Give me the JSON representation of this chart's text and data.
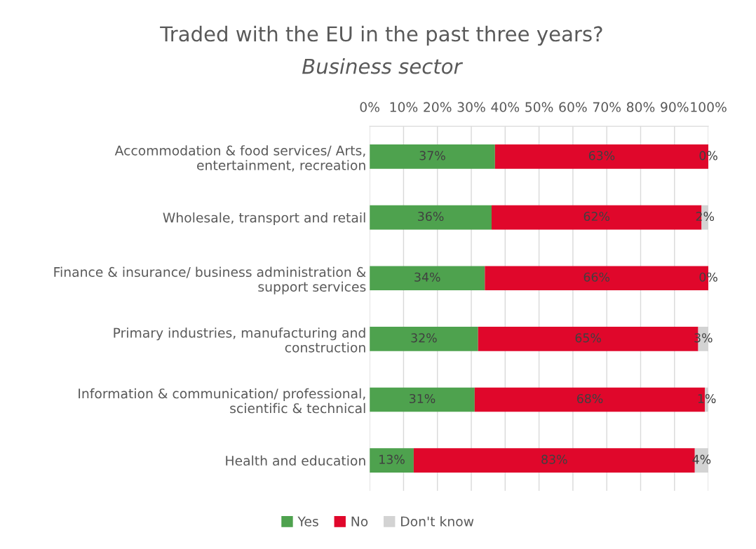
{
  "chart_data": {
    "type": "bar",
    "orientation": "horizontal",
    "stacked": true,
    "title": "Traded with the EU in the past three years?",
    "subtitle": "Business sector",
    "categories": [
      "Accommodation & food services/ Arts,\nentertainment, recreation",
      "Wholesale, transport and retail",
      "Finance & insurance/ business administration &\nsupport services",
      "Primary industries, manufacturing and\nconstruction",
      "Information & communication/ professional,\nscientific & technical",
      "Health and education"
    ],
    "series": [
      {
        "name": "Yes",
        "color": "#4ea24e",
        "values": [
          37,
          36,
          34,
          32,
          31,
          13
        ],
        "value_labels": [
          "37%",
          "36%",
          "34%",
          "32%",
          "31%",
          "13%"
        ]
      },
      {
        "name": "No",
        "color": "#e0072b",
        "values": [
          63,
          62,
          66,
          65,
          68,
          83
        ],
        "value_labels": [
          "63%",
          "62%",
          "66%",
          "65%",
          "68%",
          "83%"
        ]
      },
      {
        "name": "Don't know",
        "color": "#d3d3d3",
        "values": [
          0,
          2,
          0,
          3,
          1,
          4
        ],
        "value_labels": [
          "0%",
          "2%",
          "0%",
          "3%",
          "1%",
          "4%"
        ]
      }
    ],
    "xlim": [
      0,
      100
    ],
    "xticks": [
      {
        "value": 0,
        "label": "0%"
      },
      {
        "value": 10,
        "label": "10%"
      },
      {
        "value": 20,
        "label": "20%"
      },
      {
        "value": 30,
        "label": "30%"
      },
      {
        "value": 40,
        "label": "40%"
      },
      {
        "value": 50,
        "label": "50%"
      },
      {
        "value": 60,
        "label": "60%"
      },
      {
        "value": 70,
        "label": "70%"
      },
      {
        "value": 80,
        "label": "80%"
      },
      {
        "value": 90,
        "label": "90%"
      },
      {
        "value": 100,
        "label": "100%"
      }
    ],
    "grid": "x",
    "legend": "bottom"
  }
}
